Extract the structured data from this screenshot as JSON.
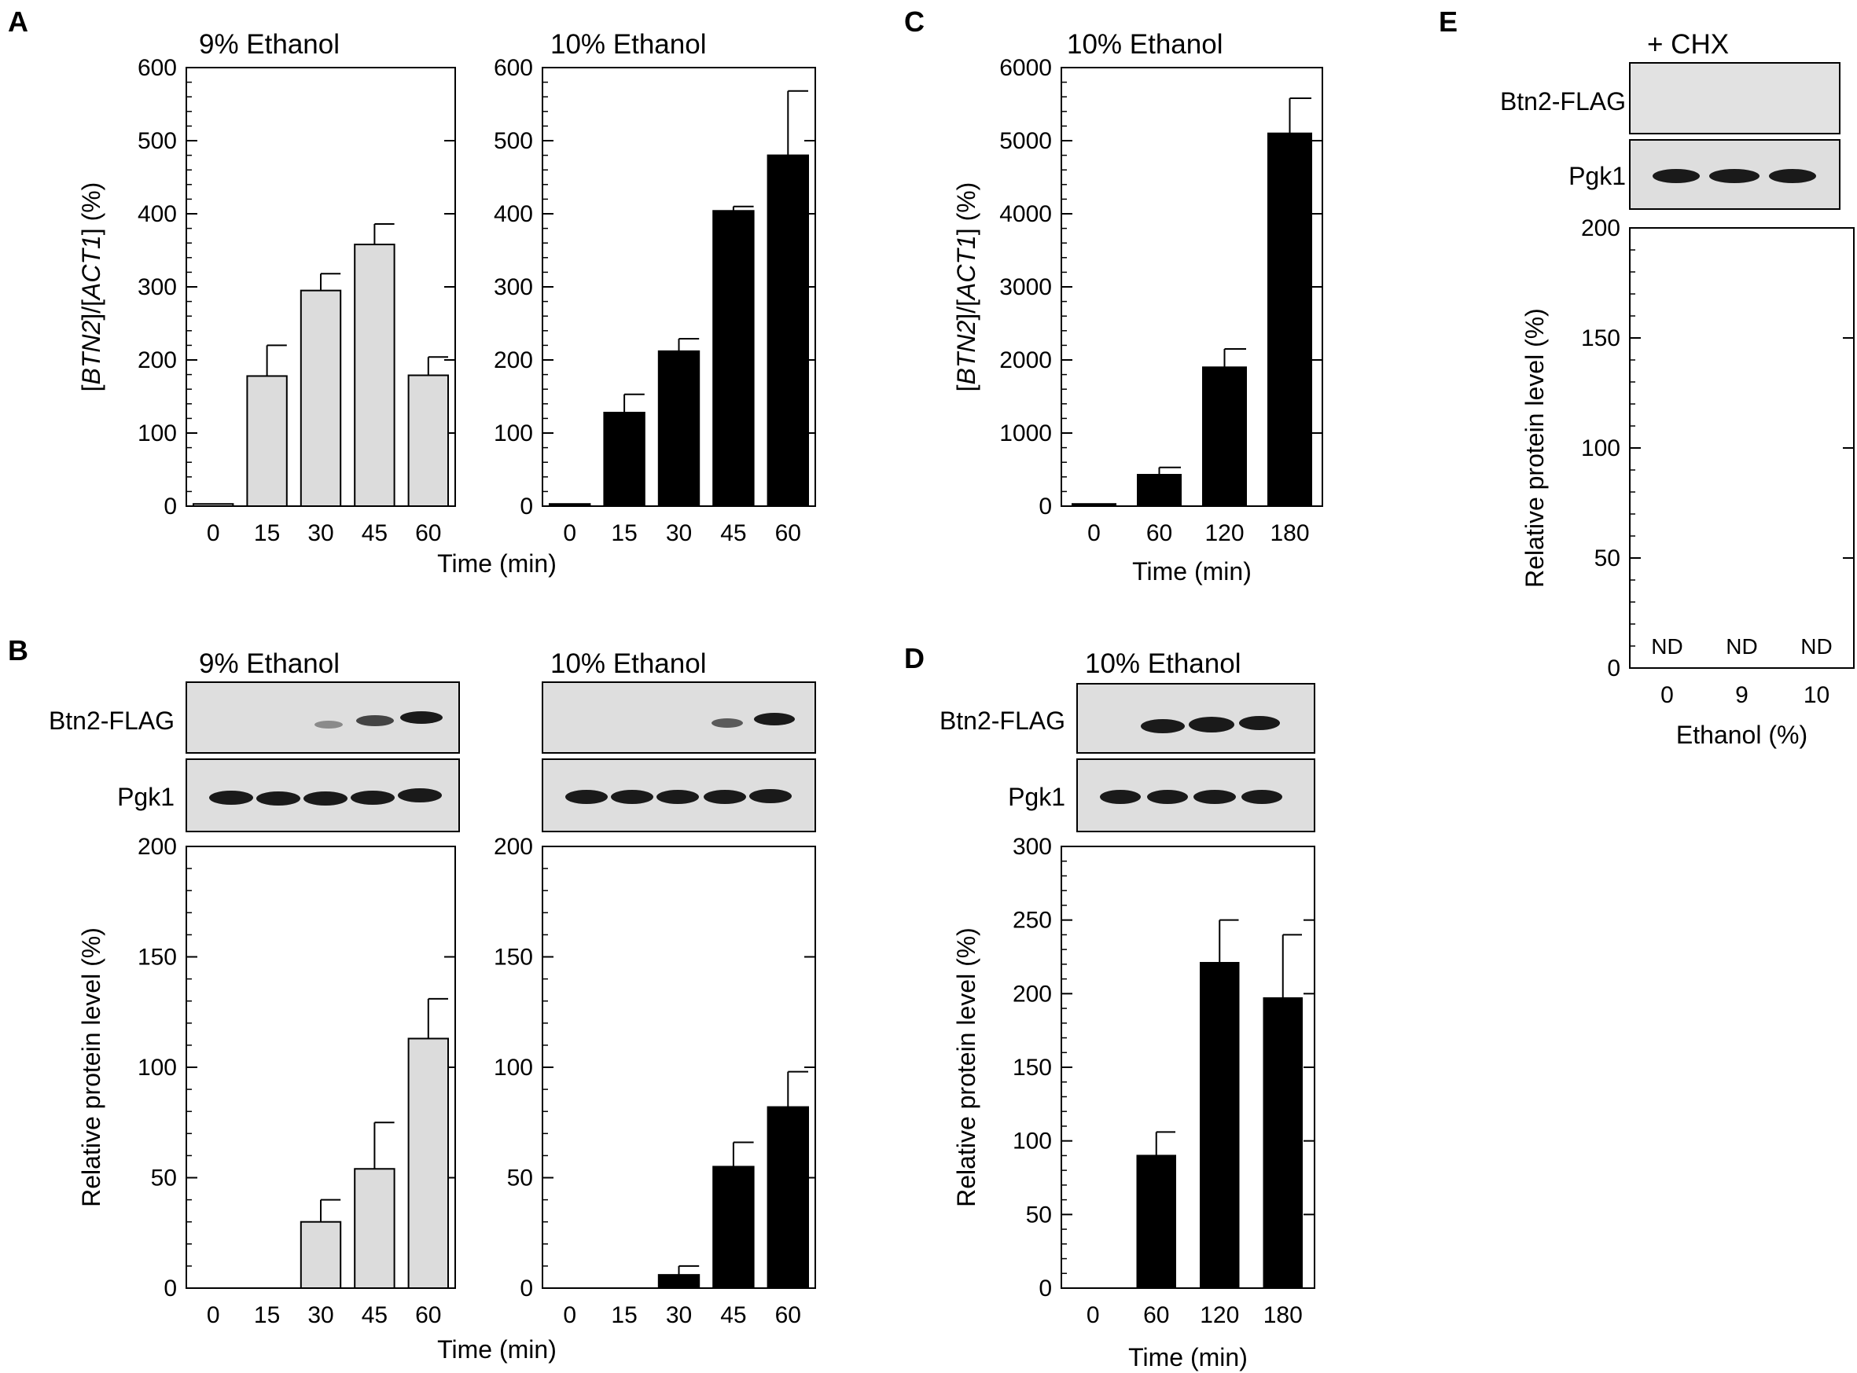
{
  "colors": {
    "gray_bar": "#dcdcdc",
    "black_bar": "#000000",
    "blot_bg": "#dedede",
    "band": "#1a1a1a"
  },
  "panel_labels": [
    "A",
    "B",
    "C",
    "D",
    "E"
  ],
  "blot_row_labels": {
    "target": "Btn2-FLAG",
    "loading": "Pgk1"
  },
  "panel_E_treatment": "+ CHX",
  "nd_label": "ND",
  "chart_data": [
    {
      "id": "A1",
      "type": "bar",
      "title": "9% Ethanol",
      "ylabel": "[BTN2]/[ACT1] (%)",
      "categories": [
        "0",
        "15",
        "30",
        "45",
        "60"
      ],
      "values": [
        3,
        178,
        295,
        358,
        179
      ],
      "errors": [
        0,
        42,
        23,
        28,
        25
      ],
      "ylim": [
        0,
        600
      ],
      "yticks": [
        "0",
        "100",
        "200",
        "300",
        "400",
        "500",
        "600"
      ],
      "color": "gray"
    },
    {
      "id": "A2",
      "type": "bar",
      "title": "10% Ethanol",
      "xlabel": "Time (min)",
      "categories": [
        "0",
        "15",
        "30",
        "45",
        "60"
      ],
      "values": [
        3,
        128,
        212,
        404,
        480
      ],
      "errors": [
        0,
        25,
        17,
        6,
        88
      ],
      "ylim": [
        0,
        600
      ],
      "yticks": [
        "0",
        "100",
        "200",
        "300",
        "400",
        "500",
        "600"
      ],
      "color": "black"
    },
    {
      "id": "C",
      "type": "bar",
      "title": "10% Ethanol",
      "ylabel": "[BTN2]/[ACT1] (%)",
      "xlabel": "Time (min)",
      "categories": [
        "0",
        "60",
        "120",
        "180"
      ],
      "values": [
        30,
        430,
        1900,
        5100
      ],
      "errors": [
        0,
        100,
        250,
        480
      ],
      "ylim": [
        0,
        6000
      ],
      "yticks": [
        "0",
        "1000",
        "2000",
        "3000",
        "4000",
        "5000",
        "6000"
      ],
      "color": "black"
    },
    {
      "id": "B1",
      "type": "bar",
      "title": "9% Ethanol",
      "ylabel": "Relative protein level (%)",
      "categories": [
        "0",
        "15",
        "30",
        "45",
        "60"
      ],
      "values": [
        0,
        0,
        30,
        54,
        113
      ],
      "errors": [
        0,
        0,
        10,
        21,
        18
      ],
      "ylim": [
        0,
        200
      ],
      "yticks": [
        "0",
        "50",
        "100",
        "150",
        "200"
      ],
      "color": "gray"
    },
    {
      "id": "B2",
      "type": "bar",
      "title": "10% Ethanol",
      "xlabel": "Time (min)",
      "categories": [
        "0",
        "15",
        "30",
        "45",
        "60"
      ],
      "values": [
        0,
        0,
        6,
        55,
        82
      ],
      "errors": [
        0,
        0,
        4,
        11,
        16
      ],
      "ylim": [
        0,
        200
      ],
      "yticks": [
        "0",
        "50",
        "100",
        "150",
        "200"
      ],
      "color": "black"
    },
    {
      "id": "D",
      "type": "bar",
      "title": "10% Ethanol",
      "ylabel": "Relative protein level (%)",
      "xlabel": "Time (min)",
      "categories": [
        "0",
        "60",
        "120",
        "180"
      ],
      "values": [
        0,
        90,
        221,
        197
      ],
      "errors": [
        0,
        16,
        29,
        43
      ],
      "ylim": [
        0,
        300
      ],
      "yticks": [
        "0",
        "50",
        "100",
        "150",
        "200",
        "250",
        "300"
      ],
      "color": "black"
    },
    {
      "id": "E",
      "type": "bar",
      "ylabel": "Relative protein level (%)",
      "xlabel": "Ethanol (%)",
      "categories": [
        "0",
        "9",
        "10"
      ],
      "values": [
        null,
        null,
        null
      ],
      "errors": [
        0,
        0,
        0
      ],
      "ylim": [
        0,
        200
      ],
      "yticks": [
        "0",
        "50",
        "100",
        "150",
        "200"
      ],
      "color": "black"
    }
  ]
}
